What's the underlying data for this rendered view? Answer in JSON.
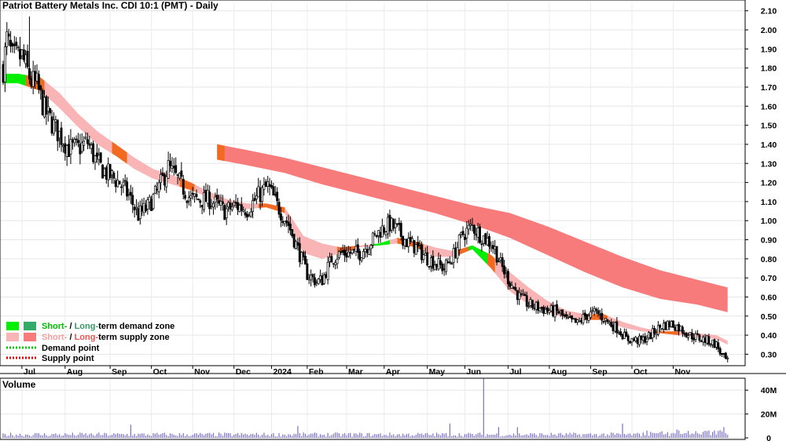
{
  "title": "Patriot Battery Metals Inc. CDI 10:1 (PMT) - Daily",
  "volume_label": "Volume",
  "colors": {
    "short_demand": "#00ee00",
    "long_demand": "#33aa66",
    "short_supply": "#f9b5b5",
    "long_supply": "#f77b7b",
    "crossover": "#f26a21",
    "candle": "#000000",
    "volume_bar": "#7b6fc9",
    "demand_point": "#00cc00",
    "supply_point": "#dd0000"
  },
  "legend": {
    "row1": {
      "short": "Short-",
      "slash": " / ",
      "long": "Long-",
      "rest": "term demand zone"
    },
    "row2": {
      "short": "Short-",
      "slash": " / ",
      "long": "Long-",
      "rest": "term supply zone"
    },
    "row3": "Demand point",
    "row4": "Supply point"
  },
  "chart_data": {
    "type": "candlestick",
    "title": "Patriot Battery Metals Inc. CDI 10:1 (PMT) - Daily",
    "price_axis": {
      "ylim": [
        0.24,
        2.14
      ],
      "ticks": [
        0.3,
        0.4,
        0.5,
        0.6,
        0.7,
        0.8,
        0.9,
        1.0,
        1.1,
        1.2,
        1.3,
        1.4,
        1.5,
        1.6,
        1.7,
        1.8,
        1.9,
        2.0,
        2.1
      ],
      "tick_labels": [
        "0.30",
        "0.40",
        "0.50",
        "0.60",
        "0.70",
        "0.80",
        "0.90",
        "1.00",
        "1.10",
        "1.20",
        "1.30",
        "1.40",
        "1.50",
        "1.60",
        "1.70",
        "1.80",
        "1.90",
        "2.00",
        "2.10"
      ]
    },
    "volume_axis": {
      "ylim": [
        0,
        50
      ],
      "ticks": [
        0,
        20,
        40
      ],
      "tick_labels": [
        "0",
        "20M",
        "40M"
      ]
    },
    "month_labels": [
      "Jul",
      "Aug",
      "Sep",
      "Oct",
      "Nov",
      "Dec",
      "2024",
      "Feb",
      "Mar",
      "Apr",
      "May",
      "Jun",
      "Jul",
      "Aug",
      "Sep",
      "Oct",
      "Nov"
    ],
    "price_path": [
      [
        0,
        1.8
      ],
      [
        2,
        1.95
      ],
      [
        5,
        1.85
      ],
      [
        10,
        1.86
      ],
      [
        15,
        1.73
      ],
      [
        18,
        1.71
      ],
      [
        22,
        1.58
      ],
      [
        28,
        1.48
      ],
      [
        35,
        1.38
      ],
      [
        40,
        1.38
      ],
      [
        45,
        1.41
      ],
      [
        50,
        1.3
      ],
      [
        55,
        1.25
      ],
      [
        62,
        1.2
      ],
      [
        67,
        1.13
      ],
      [
        72,
        1.03
      ],
      [
        77,
        1.07
      ],
      [
        82,
        1.15
      ],
      [
        88,
        1.28
      ],
      [
        94,
        1.2
      ],
      [
        100,
        1.11
      ],
      [
        110,
        1.11
      ],
      [
        118,
        1.05
      ],
      [
        124,
        1.08
      ],
      [
        130,
        1.06
      ],
      [
        136,
        1.13
      ],
      [
        141,
        1.18
      ],
      [
        146,
        1.08
      ],
      [
        152,
        0.98
      ],
      [
        157,
        0.85
      ],
      [
        162,
        0.72
      ],
      [
        167,
        0.68
      ],
      [
        170,
        0.69
      ],
      [
        175,
        0.8
      ],
      [
        180,
        0.83
      ],
      [
        185,
        0.83
      ],
      [
        190,
        0.83
      ],
      [
        196,
        0.89
      ],
      [
        201,
        0.95
      ],
      [
        206,
        0.98
      ],
      [
        210,
        0.95
      ],
      [
        215,
        0.89
      ],
      [
        220,
        0.86
      ],
      [
        225,
        0.81
      ],
      [
        230,
        0.78
      ],
      [
        235,
        0.75
      ],
      [
        240,
        0.82
      ],
      [
        245,
        0.93
      ],
      [
        250,
        0.97
      ],
      [
        255,
        0.92
      ],
      [
        260,
        0.88
      ],
      [
        262,
        0.85
      ],
      [
        265,
        0.77
      ],
      [
        270,
        0.68
      ],
      [
        275,
        0.6
      ],
      [
        280,
        0.56
      ],
      [
        290,
        0.53
      ],
      [
        296,
        0.52
      ],
      [
        300,
        0.48
      ],
      [
        306,
        0.46
      ],
      [
        310,
        0.5
      ],
      [
        316,
        0.52
      ],
      [
        322,
        0.47
      ],
      [
        328,
        0.43
      ],
      [
        332,
        0.38
      ],
      [
        340,
        0.37
      ],
      [
        345,
        0.4
      ],
      [
        351,
        0.45
      ],
      [
        356,
        0.46
      ],
      [
        360,
        0.44
      ],
      [
        366,
        0.4
      ],
      [
        372,
        0.38
      ],
      [
        376,
        0.37
      ],
      [
        380,
        0.35
      ],
      [
        383,
        0.29
      ],
      [
        386,
        0.26
      ]
    ],
    "short_term_zone": {
      "upper": [
        [
          8,
          1.77
        ],
        [
          20,
          1.75
        ],
        [
          30,
          1.67
        ],
        [
          40,
          1.56
        ],
        [
          50,
          1.47
        ],
        [
          60,
          1.4
        ],
        [
          70,
          1.33
        ],
        [
          80,
          1.27
        ],
        [
          90,
          1.24
        ],
        [
          100,
          1.2
        ],
        [
          110,
          1.15
        ],
        [
          120,
          1.11
        ],
        [
          130,
          1.09
        ],
        [
          140,
          1.09
        ],
        [
          150,
          1.07
        ],
        [
          160,
          0.92
        ],
        [
          170,
          0.88
        ],
        [
          180,
          0.86
        ],
        [
          190,
          0.87
        ],
        [
          200,
          0.88
        ],
        [
          210,
          0.91
        ],
        [
          220,
          0.89
        ],
        [
          230,
          0.86
        ],
        [
          240,
          0.84
        ],
        [
          250,
          0.87
        ],
        [
          260,
          0.82
        ],
        [
          270,
          0.73
        ],
        [
          280,
          0.65
        ],
        [
          290,
          0.58
        ],
        [
          300,
          0.53
        ],
        [
          310,
          0.51
        ],
        [
          320,
          0.51
        ],
        [
          330,
          0.47
        ],
        [
          340,
          0.44
        ],
        [
          350,
          0.42
        ],
        [
          360,
          0.42
        ],
        [
          370,
          0.41
        ],
        [
          380,
          0.4
        ],
        [
          386,
          0.37
        ]
      ],
      "lower": [
        [
          8,
          1.72
        ],
        [
          20,
          1.68
        ],
        [
          30,
          1.59
        ],
        [
          40,
          1.49
        ],
        [
          50,
          1.4
        ],
        [
          60,
          1.34
        ],
        [
          70,
          1.27
        ],
        [
          80,
          1.22
        ],
        [
          90,
          1.19
        ],
        [
          100,
          1.16
        ],
        [
          110,
          1.12
        ],
        [
          120,
          1.08
        ],
        [
          130,
          1.06
        ],
        [
          140,
          1.07
        ],
        [
          150,
          1.04
        ],
        [
          160,
          0.83
        ],
        [
          170,
          0.8
        ],
        [
          180,
          0.83
        ],
        [
          190,
          0.86
        ],
        [
          200,
          0.87
        ],
        [
          210,
          0.88
        ],
        [
          220,
          0.86
        ],
        [
          230,
          0.81
        ],
        [
          240,
          0.81
        ],
        [
          250,
          0.85
        ],
        [
          260,
          0.75
        ],
        [
          270,
          0.63
        ],
        [
          280,
          0.56
        ],
        [
          290,
          0.52
        ],
        [
          300,
          0.49
        ],
        [
          310,
          0.48
        ],
        [
          320,
          0.48
        ],
        [
          330,
          0.44
        ],
        [
          340,
          0.42
        ],
        [
          350,
          0.41
        ],
        [
          360,
          0.4
        ],
        [
          370,
          0.39
        ],
        [
          380,
          0.38
        ],
        [
          386,
          0.35
        ]
      ]
    },
    "long_term_zone": {
      "upper": [
        [
          114,
          1.4
        ],
        [
          130,
          1.37
        ],
        [
          150,
          1.33
        ],
        [
          170,
          1.28
        ],
        [
          190,
          1.23
        ],
        [
          210,
          1.18
        ],
        [
          230,
          1.13
        ],
        [
          250,
          1.08
        ],
        [
          270,
          1.04
        ],
        [
          290,
          0.97
        ],
        [
          310,
          0.89
        ],
        [
          330,
          0.81
        ],
        [
          350,
          0.74
        ],
        [
          370,
          0.69
        ],
        [
          386,
          0.65
        ]
      ],
      "lower": [
        [
          114,
          1.32
        ],
        [
          130,
          1.29
        ],
        [
          150,
          1.25
        ],
        [
          170,
          1.19
        ],
        [
          190,
          1.14
        ],
        [
          210,
          1.09
        ],
        [
          230,
          1.04
        ],
        [
          250,
          0.98
        ],
        [
          270,
          0.91
        ],
        [
          290,
          0.82
        ],
        [
          310,
          0.73
        ],
        [
          330,
          0.65
        ],
        [
          350,
          0.59
        ],
        [
          370,
          0.56
        ],
        [
          386,
          0.52
        ]
      ]
    },
    "demand_segments": [
      [
        0,
        12
      ],
      [
        196,
        206
      ],
      [
        248,
        258
      ]
    ],
    "crossover_segments": [
      [
        12,
        22
      ],
      [
        58,
        66
      ],
      [
        94,
        102
      ],
      [
        136,
        150
      ],
      [
        178,
        188
      ],
      [
        210,
        224
      ],
      [
        240,
        248
      ],
      [
        258,
        262
      ],
      [
        310,
        322
      ],
      [
        346,
        360
      ]
    ],
    "volume_spikes": [
      [
        256,
        50
      ],
      [
        68,
        11
      ],
      [
        157,
        10
      ],
      [
        238,
        12
      ],
      [
        264,
        9
      ],
      [
        274,
        9
      ],
      [
        330,
        12
      ],
      [
        384,
        9
      ]
    ]
  }
}
